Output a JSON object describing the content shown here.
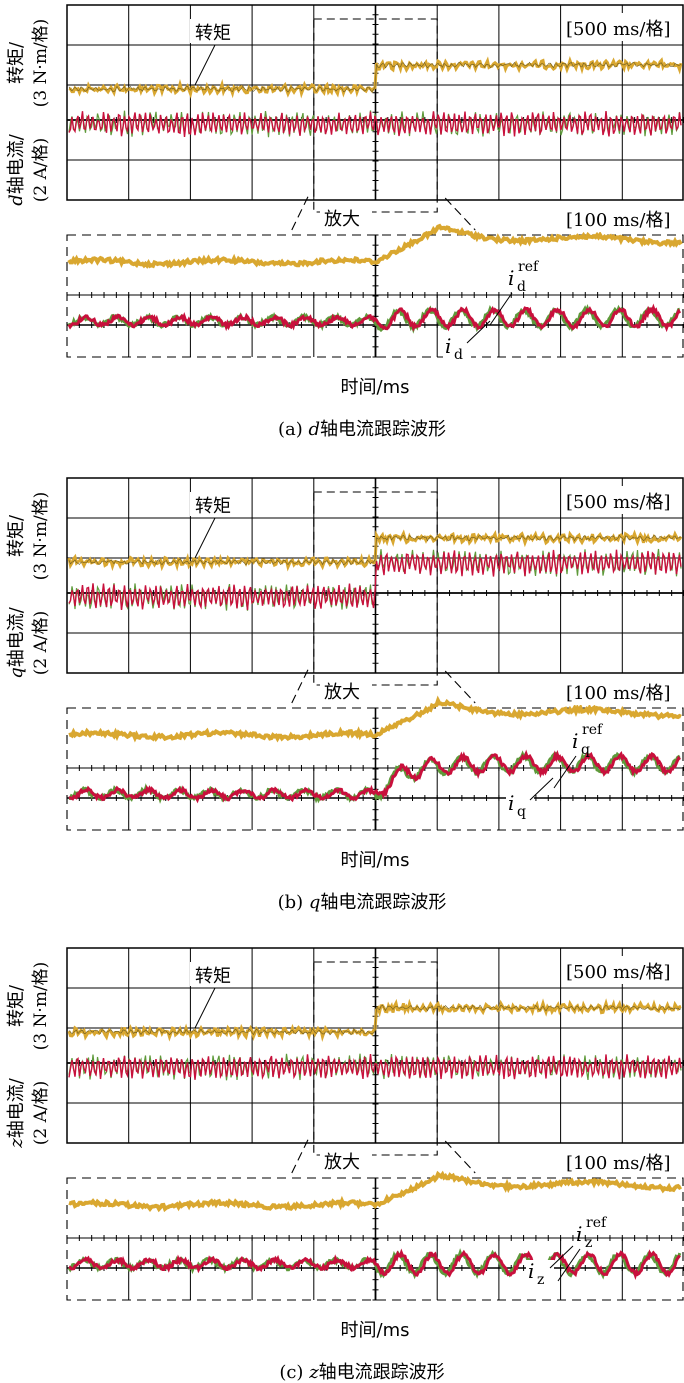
{
  "figure": {
    "panels": [
      {
        "id": "a",
        "caption_prefix": "(a)",
        "caption_var": "d",
        "caption_text": "轴电流跟踪波形",
        "ylabel_torque_1": "转矩/",
        "ylabel_torque_2": "(3 N·m/格)",
        "ylabel_current_var": "d",
        "ylabel_current_1": "轴电流/",
        "ylabel_current_2": "(2 A/格)",
        "torque_label": "转矩",
        "timescale_top": "[500 ms/格]",
        "zoom_label": "放大",
        "timescale_zoom": "[100 ms/格]",
        "ref_label_main": "i",
        "ref_label_sub": "d",
        "ref_label_sup": "ref",
        "meas_label_main": "i",
        "meas_label_sub": "d",
        "xlabel": "时间/ms"
      },
      {
        "id": "b",
        "caption_prefix": "(b)",
        "caption_var": "q",
        "caption_text": "轴电流跟踪波形",
        "ylabel_torque_1": "转矩/",
        "ylabel_torque_2": "(3 N·m/格)",
        "ylabel_current_var": "q",
        "ylabel_current_1": "轴电流/",
        "ylabel_current_2": "(2 A/格)",
        "torque_label": "转矩",
        "timescale_top": "[500 ms/格]",
        "zoom_label": "放大",
        "timescale_zoom": "[100 ms/格]",
        "ref_label_main": "i",
        "ref_label_sub": "q",
        "ref_label_sup": "ref",
        "meas_label_main": "i",
        "meas_label_sub": "q",
        "xlabel": "时间/ms"
      },
      {
        "id": "c",
        "caption_prefix": "(c)",
        "caption_var": "z",
        "caption_text": "轴电流跟踪波形",
        "ylabel_torque_1": "转矩/",
        "ylabel_torque_2": "(3 N·m/格)",
        "ylabel_current_var": "z",
        "ylabel_current_1": "轴电流/",
        "ylabel_current_2": "(2 A/格)",
        "torque_label": "转矩",
        "timescale_top": "[500 ms/格]",
        "zoom_label": "放大",
        "timescale_zoom": "[100 ms/格]",
        "ref_label_main": "i",
        "ref_label_sub": "z",
        "ref_label_sup": "ref",
        "meas_label_main": "i",
        "meas_label_sub": "z",
        "xlabel": "时间/ms"
      }
    ]
  },
  "colors": {
    "torque": "#d9a730",
    "torque_dark": "#6b5a20",
    "current_ref": "#c8103c",
    "current_meas": "#5e9a3a",
    "grid": "#000000"
  },
  "chart_data": [
    {
      "type": "line",
      "panel": "a",
      "x_divisions": 10,
      "step_at_division": 5,
      "series": [
        {
          "name": "转矩",
          "before": 0.0,
          "after": 1.0,
          "ripple": 0.12
        },
        {
          "name": "i_d^ref",
          "before": 0.0,
          "after": 0.0,
          "ripple": 0.35
        },
        {
          "name": "i_d",
          "before": 0.0,
          "after": 0.0,
          "ripple": 0.35
        }
      ],
      "zoom_series": [
        {
          "name": "转矩",
          "before": 0.0,
          "after": 1.0,
          "overshoot": 1.35
        },
        {
          "name": "i_d",
          "before": 0.0,
          "after": 0.1,
          "oscillation": 0.55
        }
      ]
    },
    {
      "type": "line",
      "panel": "b",
      "x_divisions": 10,
      "step_at_division": 5,
      "series": [
        {
          "name": "转矩",
          "before": 0.0,
          "after": 1.0,
          "ripple": 0.12
        },
        {
          "name": "i_q^ref",
          "before": 0.0,
          "after": 1.0,
          "ripple": 0.45
        },
        {
          "name": "i_q",
          "before": 0.0,
          "after": 1.0,
          "ripple": 0.45
        }
      ],
      "zoom_series": [
        {
          "name": "转矩",
          "before": 0.0,
          "after": 1.0,
          "overshoot": 1.25
        },
        {
          "name": "i_q",
          "before": 0.0,
          "after": 1.0,
          "oscillation": 0.5
        }
      ]
    },
    {
      "type": "line",
      "panel": "c",
      "x_divisions": 10,
      "step_at_division": 5,
      "series": [
        {
          "name": "转矩",
          "before": 0.0,
          "after": 1.0,
          "ripple": 0.12
        },
        {
          "name": "i_z^ref",
          "before": 0.0,
          "after": 0.0,
          "ripple": 0.35
        },
        {
          "name": "i_z",
          "before": 0.0,
          "after": 0.0,
          "ripple": 0.35
        }
      ],
      "zoom_series": [
        {
          "name": "转矩",
          "before": 0.0,
          "after": 0.9,
          "overshoot": 1.15
        },
        {
          "name": "i_z",
          "before": 0.0,
          "after": 0.0,
          "oscillation": 0.7
        }
      ]
    }
  ]
}
